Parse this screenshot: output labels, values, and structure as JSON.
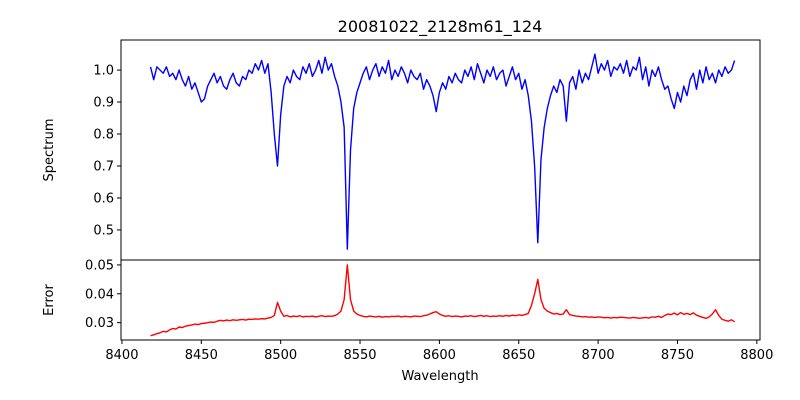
{
  "chart_data": [
    {
      "type": "line",
      "title": "20081022_2128m61_124",
      "xlabel": "",
      "ylabel": "Spectrum",
      "color": "#0000ff",
      "xlim": [
        8399.4,
        8802
      ],
      "ylim": [
        0.406,
        1.094
      ],
      "yticks": [
        0.5,
        0.6,
        0.7,
        0.8,
        0.9,
        1.0
      ],
      "ytick_labels": [
        "0.5",
        "0.6",
        "0.7",
        "0.8",
        "0.9",
        "1.0"
      ],
      "x_start": 8418,
      "x_step": 2,
      "values": [
        1.01,
        0.97,
        1.01,
        1.0,
        0.99,
        1.01,
        0.98,
        0.99,
        0.97,
        1.0,
        0.97,
        0.95,
        0.98,
        0.94,
        0.96,
        0.93,
        0.9,
        0.91,
        0.95,
        0.97,
        0.99,
        0.96,
        0.98,
        0.95,
        0.94,
        0.97,
        0.99,
        0.96,
        0.95,
        0.98,
        0.97,
        1.0,
        0.99,
        1.02,
        1.0,
        1.03,
        0.99,
        1.02,
        0.93,
        0.8,
        0.7,
        0.86,
        0.95,
        0.98,
        0.96,
        1.0,
        0.98,
        0.97,
        1.01,
        0.99,
        1.02,
        0.98,
        1.0,
        1.03,
        0.99,
        1.04,
        1.0,
        1.02,
        0.98,
        0.95,
        0.9,
        0.82,
        0.44,
        0.75,
        0.88,
        0.93,
        0.96,
        0.99,
        1.01,
        0.97,
        1.0,
        1.02,
        0.98,
        1.01,
        0.99,
        1.03,
        0.97,
        1.0,
        0.98,
        1.01,
        0.99,
        0.96,
        1.0,
        0.98,
        0.97,
        0.99,
        0.94,
        0.97,
        0.95,
        0.92,
        0.87,
        0.93,
        0.96,
        0.94,
        0.98,
        0.96,
        0.99,
        0.97,
        0.96,
        1.0,
        0.98,
        1.01,
        0.97,
        1.02,
        0.99,
        0.96,
        1.0,
        0.98,
        1.01,
        0.97,
        0.99,
        1.0,
        0.95,
        0.98,
        1.01,
        0.97,
        0.99,
        0.94,
        0.97,
        0.92,
        0.84,
        0.7,
        0.46,
        0.72,
        0.82,
        0.88,
        0.92,
        0.95,
        0.93,
        0.97,
        0.95,
        0.84,
        0.96,
        0.98,
        0.94,
        1.0,
        0.96,
        0.99,
        0.97,
        1.01,
        1.05,
        0.99,
        1.02,
        1.0,
        1.03,
        0.98,
        1.01,
        1.0,
        1.02,
        0.99,
        1.03,
        0.98,
        1.01,
        1.0,
        1.04,
        0.97,
        1.01,
        0.95,
        1.0,
        0.98,
        1.01,
        0.97,
        0.94,
        0.95,
        0.91,
        0.88,
        0.93,
        0.9,
        0.95,
        0.92,
        0.97,
        0.99,
        0.94,
        1.0,
        0.96,
        1.01,
        0.97,
        0.99,
        0.96,
        1.0,
        0.98,
        1.01,
        0.99,
        1.0,
        1.03
      ]
    },
    {
      "type": "line",
      "xlabel": "Wavelength",
      "ylabel": "Error",
      "color": "#ff0000",
      "xlim": [
        8399.4,
        8802
      ],
      "ylim": [
        0.024,
        0.0517
      ],
      "xticks": [
        8400,
        8450,
        8500,
        8550,
        8600,
        8650,
        8700,
        8750,
        8800
      ],
      "xtick_labels": [
        "8400",
        "8450",
        "8500",
        "8550",
        "8600",
        "8650",
        "8700",
        "8750",
        "8800"
      ],
      "yticks": [
        0.03,
        0.04,
        0.05
      ],
      "ytick_labels": [
        "0.03",
        "0.04",
        "0.05"
      ],
      "x_start": 8418,
      "x_step": 2,
      "values": [
        0.0255,
        0.0258,
        0.0262,
        0.0265,
        0.027,
        0.0268,
        0.0275,
        0.028,
        0.0278,
        0.0285,
        0.0283,
        0.0288,
        0.029,
        0.0292,
        0.0295,
        0.0293,
        0.0297,
        0.0298,
        0.03,
        0.0302,
        0.0301,
        0.0305,
        0.0308,
        0.0306,
        0.0309,
        0.0307,
        0.031,
        0.0308,
        0.031,
        0.0311,
        0.0309,
        0.0312,
        0.0311,
        0.0313,
        0.0312,
        0.0314,
        0.0313,
        0.0316,
        0.0318,
        0.0325,
        0.037,
        0.034,
        0.0322,
        0.0325,
        0.032,
        0.0323,
        0.0321,
        0.0324,
        0.032,
        0.0322,
        0.0321,
        0.0323,
        0.032,
        0.0322,
        0.0324,
        0.0321,
        0.0323,
        0.0322,
        0.0324,
        0.033,
        0.034,
        0.038,
        0.05,
        0.038,
        0.034,
        0.033,
        0.0325,
        0.0322,
        0.032,
        0.0323,
        0.0321,
        0.032,
        0.0322,
        0.0319,
        0.0321,
        0.032,
        0.0322,
        0.0321,
        0.0323,
        0.032,
        0.0322,
        0.0321,
        0.032,
        0.0323,
        0.0322,
        0.0321,
        0.0324,
        0.0326,
        0.033,
        0.0335,
        0.0338,
        0.033,
        0.0325,
        0.0322,
        0.0324,
        0.0321,
        0.0323,
        0.0322,
        0.032,
        0.0323,
        0.0322,
        0.0324,
        0.0321,
        0.0323,
        0.0325,
        0.0322,
        0.0324,
        0.0321,
        0.0323,
        0.0322,
        0.0324,
        0.0322,
        0.0325,
        0.0323,
        0.0326,
        0.0324,
        0.0327,
        0.0325,
        0.0328,
        0.0332,
        0.036,
        0.04,
        0.045,
        0.038,
        0.035,
        0.034,
        0.0335,
        0.033,
        0.0332,
        0.0328,
        0.033,
        0.0345,
        0.0328,
        0.0325,
        0.0323,
        0.0322,
        0.032,
        0.0321,
        0.0319,
        0.032,
        0.0318,
        0.032,
        0.0319,
        0.0317,
        0.0318,
        0.0316,
        0.0318,
        0.0317,
        0.0319,
        0.0318,
        0.0317,
        0.0316,
        0.0318,
        0.0317,
        0.0315,
        0.0317,
        0.0318,
        0.0316,
        0.032,
        0.0319,
        0.0322,
        0.0318,
        0.0325,
        0.033,
        0.0328,
        0.0333,
        0.0327,
        0.0335,
        0.0329,
        0.0332,
        0.0328,
        0.0334,
        0.0326,
        0.0322,
        0.0318,
        0.0315,
        0.032,
        0.033,
        0.0345,
        0.0325,
        0.0312,
        0.0308,
        0.0305,
        0.031,
        0.0303
      ]
    }
  ]
}
